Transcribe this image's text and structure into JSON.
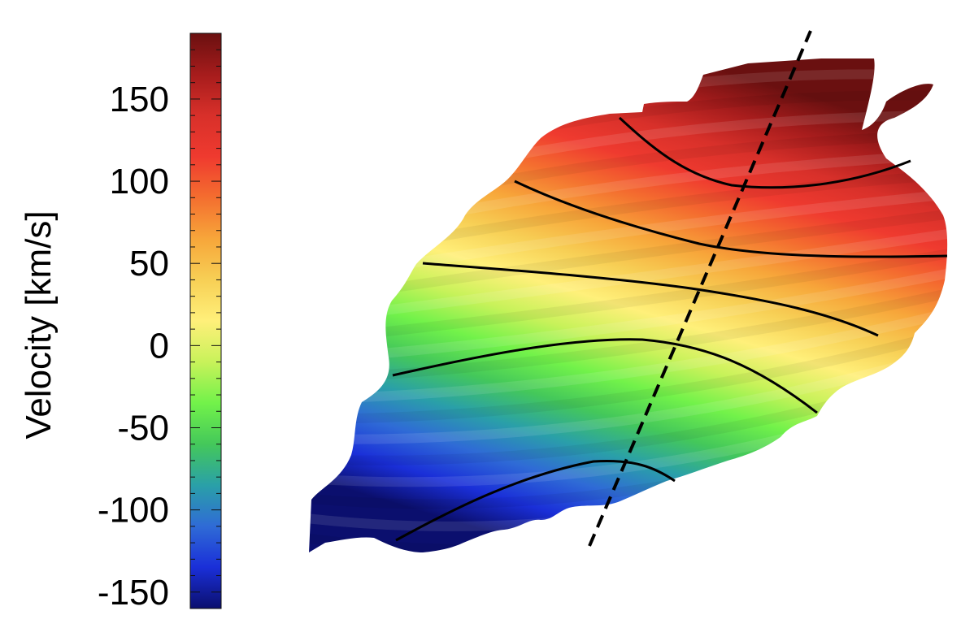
{
  "chart_data": {
    "type": "heatmap",
    "title": "",
    "colorbar": {
      "label": "Velocity [km/s]",
      "range": [
        -160,
        190
      ],
      "ticks": [
        150,
        100,
        50,
        0,
        -50,
        -100,
        -150
      ],
      "tick_labels": [
        "150",
        "100",
        "50",
        "0",
        "-50",
        "-100",
        "-150"
      ],
      "minor_tick_step": 10,
      "colormap": [
        "#0b0f6e",
        "#1a2fd8",
        "#2f6bd6",
        "#2aa0a8",
        "#44c85a",
        "#72f24a",
        "#c8f25a",
        "#fff07a",
        "#f7cf55",
        "#f7a63a",
        "#f46e2f",
        "#ef3a2f",
        "#d8302a",
        "#a61c1c",
        "#6a1010"
      ]
    },
    "velocity_field": {
      "contour_levels": [
        -60,
        10,
        40,
        60,
        100
      ],
      "kinematic_axis": "dashed line",
      "gradient": "blue (approaching, lower-left) to red (receding, upper-right)",
      "grid": false
    }
  }
}
